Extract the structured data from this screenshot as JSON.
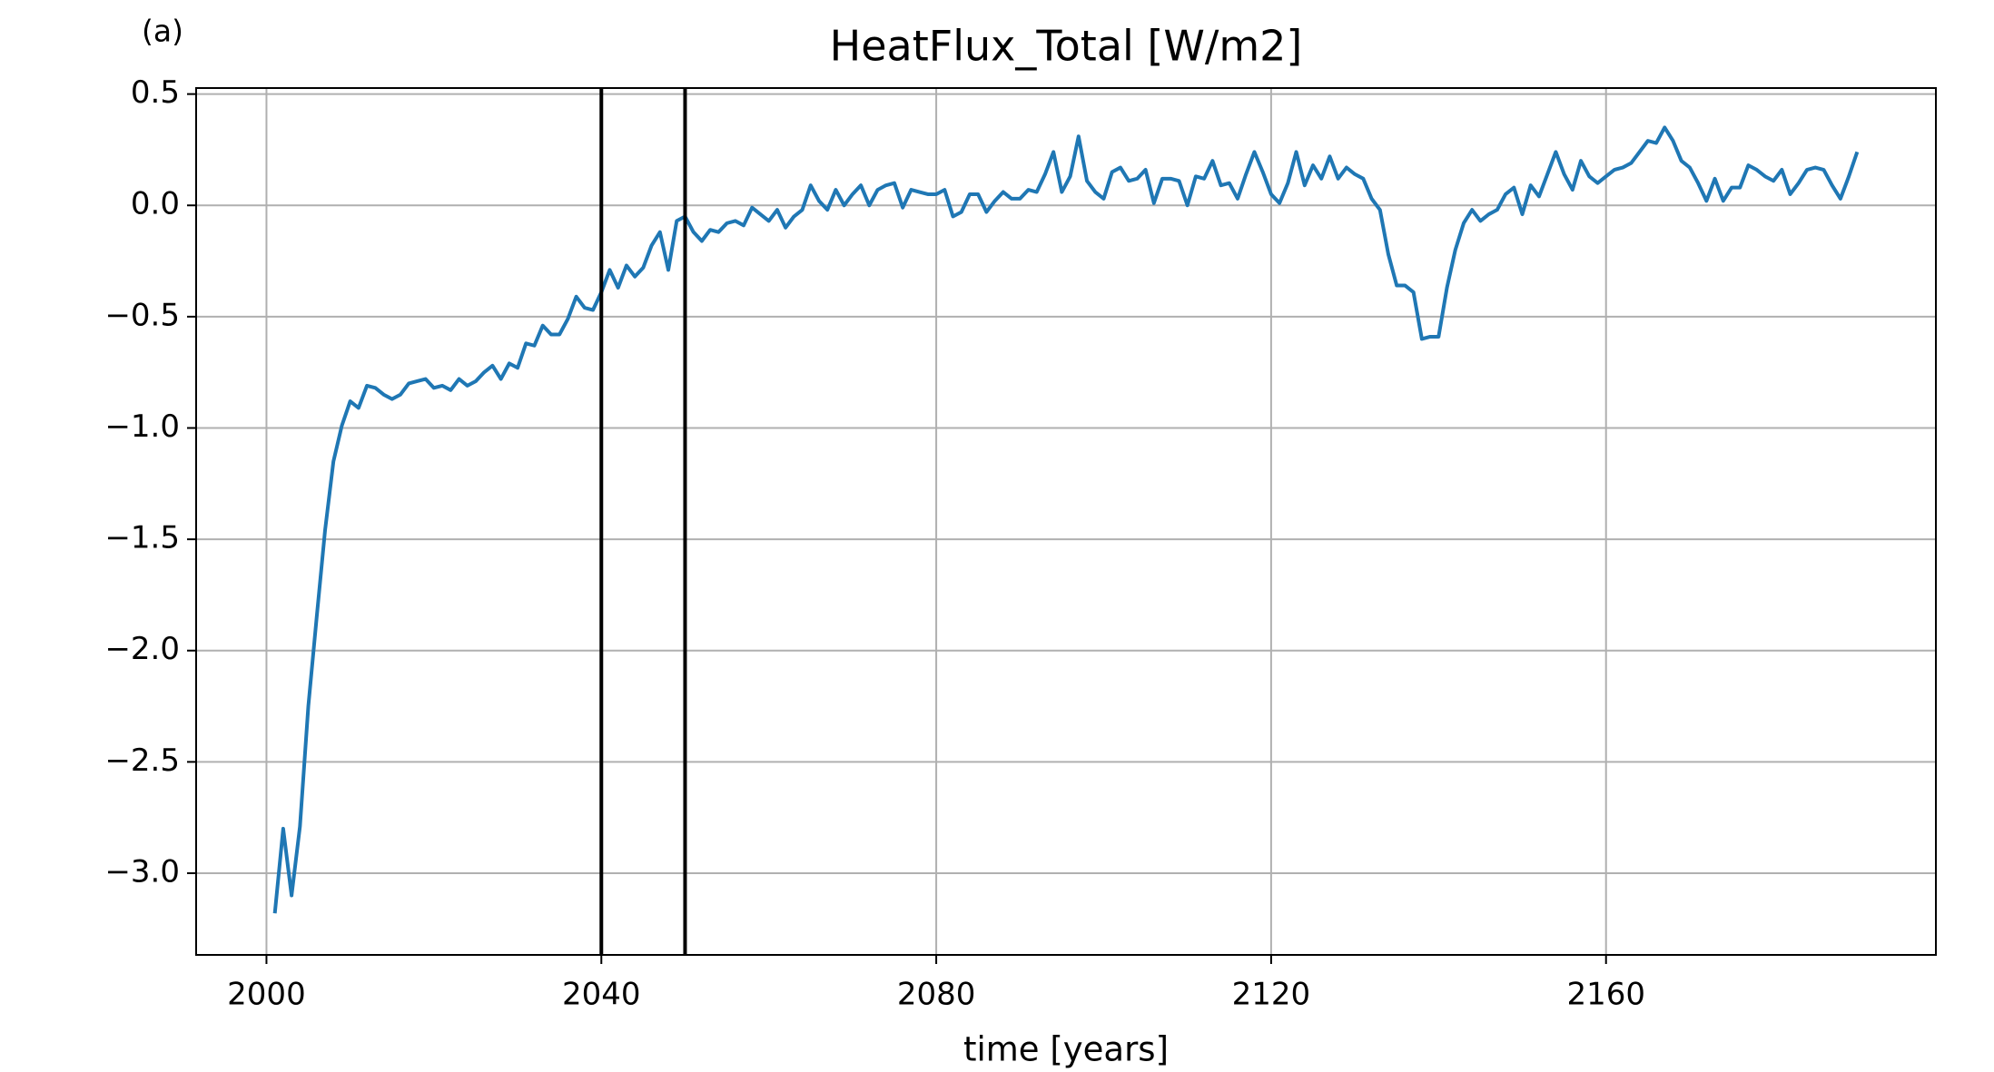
{
  "chart_data": {
    "type": "line",
    "title": "HeatFlux_Total [W/m2]",
    "panel_label": "(a)",
    "xlabel": "time [years]",
    "x": [
      2001,
      2002,
      2003,
      2004,
      2005,
      2006,
      2007,
      2008,
      2009,
      2010,
      2011,
      2012,
      2013,
      2014,
      2015,
      2016,
      2017,
      2018,
      2019,
      2020,
      2021,
      2022,
      2023,
      2024,
      2025,
      2026,
      2027,
      2028,
      2029,
      2030,
      2031,
      2032,
      2033,
      2034,
      2035,
      2036,
      2037,
      2038,
      2039,
      2040,
      2041,
      2042,
      2043,
      2044,
      2045,
      2046,
      2047,
      2048,
      2049,
      2050,
      2051,
      2052,
      2053,
      2054,
      2055,
      2056,
      2057,
      2058,
      2059,
      2060,
      2061,
      2062,
      2063,
      2064,
      2065,
      2066,
      2067,
      2068,
      2069,
      2070,
      2071,
      2072,
      2073,
      2074,
      2075,
      2076,
      2077,
      2078,
      2079,
      2080,
      2081,
      2082,
      2083,
      2084,
      2085,
      2086,
      2087,
      2088,
      2089,
      2090,
      2091,
      2092,
      2093,
      2094,
      2095,
      2096,
      2097,
      2098,
      2099,
      2100,
      2101,
      2102,
      2103,
      2104,
      2105,
      2106,
      2107,
      2108,
      2109,
      2110,
      2111,
      2112,
      2113,
      2114,
      2115,
      2116,
      2117,
      2118,
      2119,
      2120,
      2121,
      2122,
      2123,
      2124,
      2125,
      2126,
      2127,
      2128,
      2129,
      2130,
      2131,
      2132,
      2133,
      2134,
      2135,
      2136,
      2137,
      2138,
      2139,
      2140,
      2141,
      2142,
      2143,
      2144,
      2145,
      2146,
      2147,
      2148,
      2149,
      2150,
      2151,
      2152,
      2153,
      2154,
      2155,
      2156,
      2157,
      2158,
      2159,
      2160,
      2161,
      2162,
      2163,
      2164,
      2165,
      2166,
      2167,
      2168,
      2169,
      2170,
      2171,
      2172,
      2173,
      2174,
      2175,
      2176,
      2177,
      2178,
      2179,
      2180,
      2181,
      2182,
      2183,
      2184,
      2185,
      2186,
      2187,
      2188,
      2189,
      2190
    ],
    "values": [
      -3.18,
      -2.8,
      -3.1,
      -2.79,
      -2.25,
      -1.85,
      -1.46,
      -1.15,
      -0.99,
      -0.88,
      -0.91,
      -0.81,
      -0.82,
      -0.85,
      -0.87,
      -0.85,
      -0.8,
      -0.79,
      -0.78,
      -0.82,
      -0.81,
      -0.83,
      -0.78,
      -0.81,
      -0.79,
      -0.75,
      -0.72,
      -0.78,
      -0.71,
      -0.73,
      -0.62,
      -0.63,
      -0.54,
      -0.58,
      -0.58,
      -0.51,
      -0.41,
      -0.46,
      -0.47,
      -0.39,
      -0.29,
      -0.37,
      -0.27,
      -0.32,
      -0.28,
      -0.18,
      -0.12,
      -0.29,
      -0.07,
      -0.05,
      -0.12,
      -0.16,
      -0.11,
      -0.12,
      -0.08,
      -0.07,
      -0.09,
      -0.01,
      -0.04,
      -0.07,
      -0.02,
      -0.1,
      -0.05,
      -0.02,
      0.09,
      0.02,
      -0.02,
      0.07,
      0.0,
      0.05,
      0.09,
      0.0,
      0.07,
      0.09,
      0.1,
      -0.01,
      0.07,
      0.06,
      0.05,
      0.05,
      0.07,
      -0.05,
      -0.03,
      0.05,
      0.05,
      -0.03,
      0.02,
      0.06,
      0.03,
      0.03,
      0.07,
      0.06,
      0.14,
      0.24,
      0.06,
      0.13,
      0.31,
      0.11,
      0.06,
      0.03,
      0.15,
      0.17,
      0.11,
      0.12,
      0.16,
      0.01,
      0.12,
      0.12,
      0.11,
      0.0,
      0.13,
      0.12,
      0.2,
      0.09,
      0.1,
      0.03,
      0.14,
      0.24,
      0.15,
      0.05,
      0.01,
      0.1,
      0.24,
      0.09,
      0.18,
      0.12,
      0.22,
      0.12,
      0.17,
      0.14,
      0.12,
      0.03,
      -0.02,
      -0.22,
      -0.36,
      -0.36,
      -0.39,
      -0.6,
      -0.59,
      -0.59,
      -0.37,
      -0.2,
      -0.08,
      -0.02,
      -0.07,
      -0.04,
      -0.02,
      0.05,
      0.08,
      -0.04,
      0.09,
      0.04,
      0.14,
      0.24,
      0.14,
      0.07,
      0.2,
      0.13,
      0.1,
      0.13,
      0.16,
      0.17,
      0.19,
      0.24,
      0.29,
      0.28,
      0.35,
      0.29,
      0.2,
      0.17,
      0.1,
      0.02,
      0.12,
      0.02,
      0.08,
      0.08,
      0.18,
      0.16,
      0.13,
      0.11,
      0.16,
      0.05,
      0.1,
      0.16,
      0.17,
      0.16,
      0.09,
      0.03,
      0.13,
      0.24
    ],
    "color": "#1f77b4",
    "vlines": [
      2040,
      2050
    ],
    "vline_color": "#000000",
    "xlim": [
      1991.6,
      2199.4
    ],
    "xticks": [
      2000,
      2040,
      2080,
      2120,
      2160
    ],
    "ylim": [
      -3.367,
      0.527
    ],
    "yticks": [
      {
        "value": 0.5,
        "label": "0.5"
      },
      {
        "value": 0.0,
        "label": "0.0"
      },
      {
        "value": -0.5,
        "label": "−0.5"
      },
      {
        "value": -1.0,
        "label": "−1.0"
      },
      {
        "value": -1.5,
        "label": "−1.5"
      },
      {
        "value": -2.0,
        "label": "−2.0"
      },
      {
        "value": -2.5,
        "label": "−2.5"
      },
      {
        "value": -3.0,
        "label": "−3.0"
      }
    ],
    "grid": true
  }
}
